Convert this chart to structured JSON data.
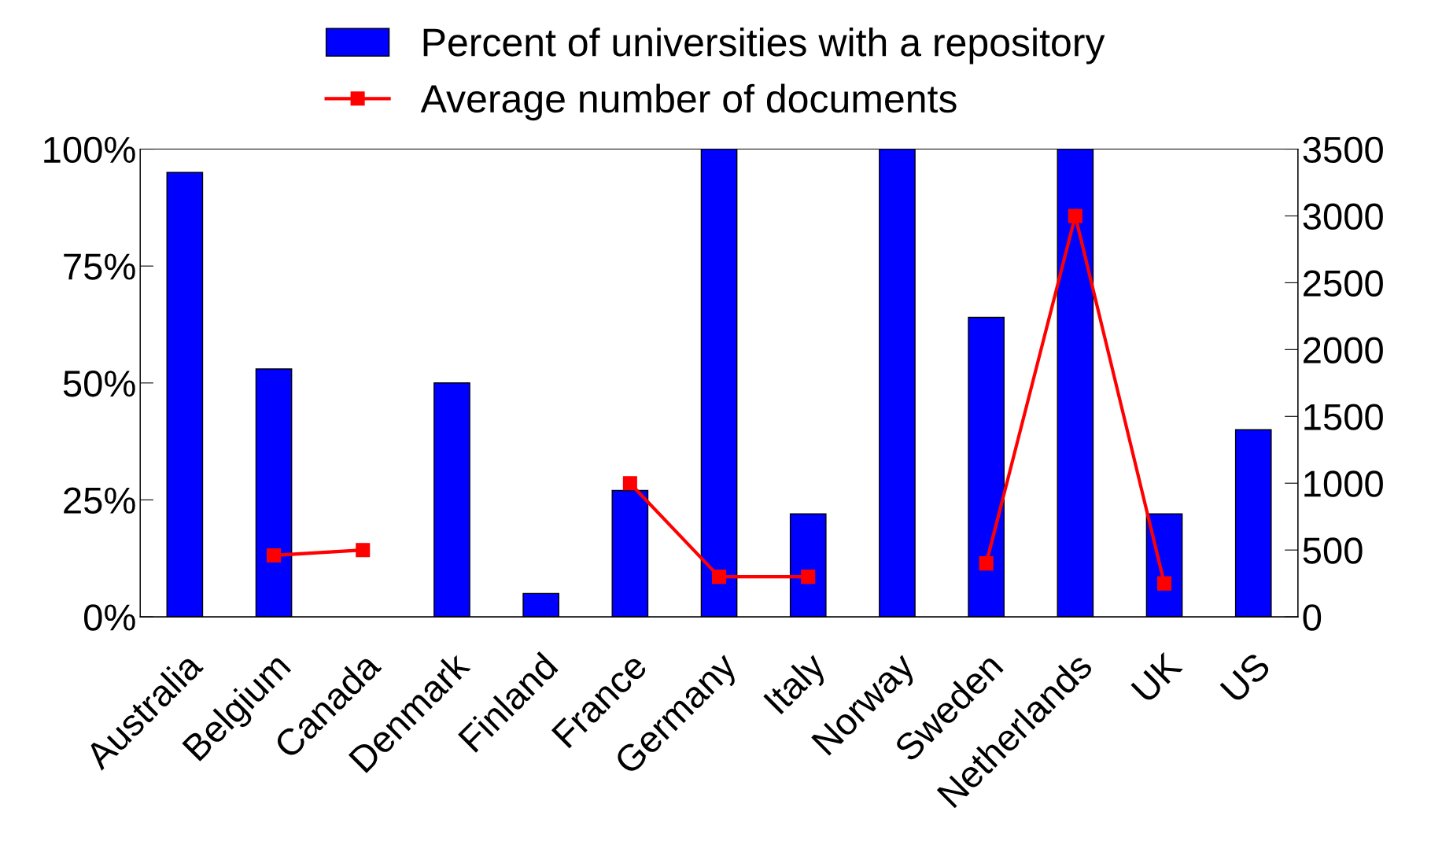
{
  "chart_data": {
    "type": "bar",
    "categories": [
      "Australia",
      "Belgium",
      "Canada",
      "Denmark",
      "Finland",
      "France",
      "Germany",
      "Italy",
      "Norway",
      "Sweden",
      "Netherlands",
      "UK",
      "US"
    ],
    "series": [
      {
        "name": "Percent of universities with a repository",
        "color": "#0000ff",
        "values": [
          95,
          53,
          null,
          50,
          5,
          27,
          100,
          22,
          100,
          64,
          100,
          22,
          40
        ]
      },
      {
        "name": "Average number of documents",
        "type": "line",
        "axis": "y2",
        "color": "#ff0000",
        "marker": "square",
        "line_style": "solid",
        "values": [
          null,
          460,
          500,
          null,
          null,
          1000,
          300,
          300,
          null,
          400,
          3000,
          250,
          null
        ]
      }
    ],
    "ylim": [
      0,
      100
    ],
    "yticks": [
      {
        "value": 0,
        "label": "0%"
      },
      {
        "value": 25,
        "label": "25%"
      },
      {
        "value": 50,
        "label": "50%"
      },
      {
        "value": 75,
        "label": "75%"
      },
      {
        "value": 100,
        "label": "100%"
      }
    ],
    "y2lim": [
      0,
      3500
    ],
    "y2ticks": [
      0,
      500,
      1000,
      1500,
      2000,
      2500,
      3000,
      3500
    ],
    "grid": false,
    "legend": "top"
  }
}
